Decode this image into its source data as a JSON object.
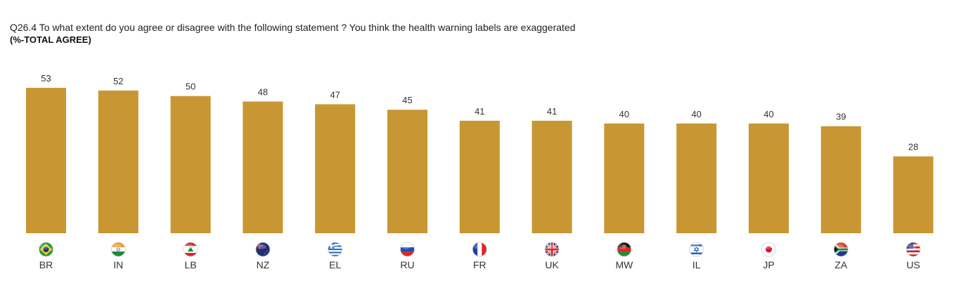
{
  "header": {
    "question": "Q26.4 To what extent do you agree or disagree with the following statement ? You think the health warning labels are exaggerated",
    "subtitle": "(%-TOTAL AGREE)"
  },
  "chart_data": {
    "type": "bar",
    "title": "Q26.4 To what extent do you agree or disagree with the following statement ? You think the health warning labels are exaggerated",
    "subtitle": "(%-TOTAL AGREE)",
    "categories": [
      "BR",
      "IN",
      "LB",
      "NZ",
      "EL",
      "RU",
      "FR",
      "UK",
      "MW",
      "IL",
      "JP",
      "ZA",
      "US"
    ],
    "values": [
      53,
      52,
      50,
      48,
      47,
      45,
      41,
      41,
      40,
      40,
      40,
      39,
      28
    ],
    "category_icons": [
      "flag-brazil-icon",
      "flag-india-icon",
      "flag-lebanon-icon",
      "flag-new-zealand-icon",
      "flag-greece-icon",
      "flag-russia-icon",
      "flag-france-icon",
      "flag-uk-icon",
      "flag-malawi-icon",
      "flag-israel-icon",
      "flag-japan-icon",
      "flag-south-africa-icon",
      "flag-usa-icon"
    ],
    "ylim": [
      0,
      53
    ],
    "grid": false,
    "bar_color": "#C89632"
  }
}
